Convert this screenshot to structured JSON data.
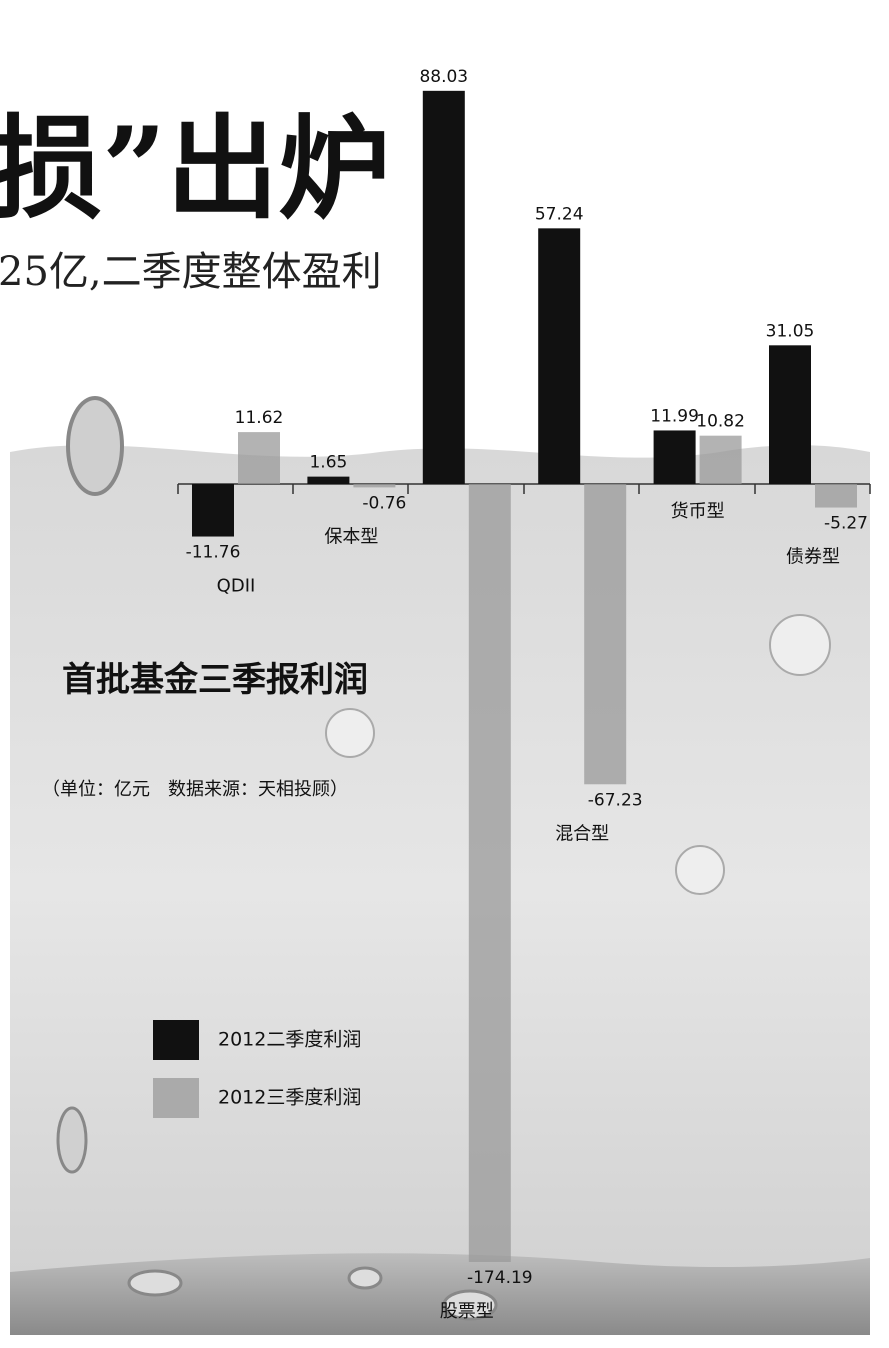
{
  "chart_data": {
    "type": "bar",
    "headline": "损”出炉",
    "subheadline": "25亿,二季度整体盈利",
    "title": "首批基金三季报利润",
    "note": "（单位：亿元　数据来源：天相投顾）",
    "categories": [
      "QDII",
      "保本型",
      "股票型",
      "混合型",
      "货币型",
      "债券型"
    ],
    "series": [
      {
        "name": "2012二季度利润",
        "color": "#111111",
        "values": [
          -11.76,
          1.65,
          88.03,
          57.24,
          11.99,
          31.05
        ]
      },
      {
        "name": "2012三季度利润",
        "color": "#9a9a9a",
        "values": [
          11.62,
          -0.76,
          -174.19,
          -67.23,
          10.82,
          -5.27
        ]
      }
    ]
  }
}
